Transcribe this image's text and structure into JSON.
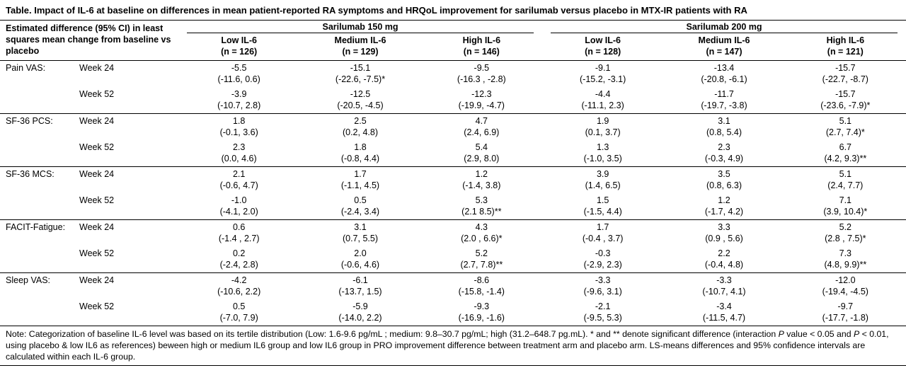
{
  "title": "Table. Impact of IL-6 at baseline on differences in mean patient-reported RA symptoms and HRQoL improvement for sarilumab versus placebo in MTX-IR patients with RA",
  "header": {
    "row_label": "Estimated difference (95% CI) in least squares mean change from baseline vs placebo",
    "groups": [
      {
        "label": "Sarilumab 150 mg",
        "columns": [
          {
            "name": "Low IL-6",
            "n": "(n = 126)"
          },
          {
            "name": "Medium IL-6",
            "n": "(n = 129)"
          },
          {
            "name": "High IL-6",
            "n": "(n = 146)"
          }
        ]
      },
      {
        "label": "Sarilumab 200 mg",
        "columns": [
          {
            "name": "Low IL-6",
            "n": "(n = 128)"
          },
          {
            "name": "Medium IL-6",
            "n": "(n = 147)"
          },
          {
            "name": "High IL-6",
            "n": "(n = 121)"
          }
        ]
      }
    ]
  },
  "measures": [
    {
      "name": "Pain VAS:",
      "rows": [
        {
          "week": "Week 24",
          "cells": [
            {
              "value": "-5.5",
              "ci": "(-11.6, 0.6)"
            },
            {
              "value": "-15.1",
              "ci": "(-22.6, -7.5)*"
            },
            {
              "value": "-9.5",
              "ci": "(-16.3 , -2.8)"
            },
            {
              "value": "-9.1",
              "ci": "(-15.2, -3.1)"
            },
            {
              "value": "-13.4",
              "ci": "(-20.8, -6.1)"
            },
            {
              "value": "-15.7",
              "ci": "(-22.7, -8.7)"
            }
          ]
        },
        {
          "week": "Week 52",
          "cells": [
            {
              "value": "-3.9",
              "ci": "(-10.7, 2.8)"
            },
            {
              "value": "-12.5",
              "ci": "(-20.5, -4.5)"
            },
            {
              "value": "-12.3",
              "ci": "(-19.9, -4.7)"
            },
            {
              "value": "-4.4",
              "ci": "(-11.1, 2.3)"
            },
            {
              "value": "-11.7",
              "ci": "(-19.7, -3.8)"
            },
            {
              "value": "-15.7",
              "ci": "(-23.6, -7.9)*"
            }
          ]
        }
      ]
    },
    {
      "name": "SF-36 PCS:",
      "rows": [
        {
          "week": "Week 24",
          "cells": [
            {
              "value": "1.8",
              "ci": "(-0.1, 3.6)"
            },
            {
              "value": "2.5",
              "ci": "(0.2, 4.8)"
            },
            {
              "value": "4.7",
              "ci": "(2.4, 6.9)"
            },
            {
              "value": "1.9",
              "ci": "(0.1, 3.7)"
            },
            {
              "value": "3.1",
              "ci": "(0.8, 5.4)"
            },
            {
              "value": "5.1",
              "ci": "(2.7, 7.4)*"
            }
          ]
        },
        {
          "week": "Week 52",
          "cells": [
            {
              "value": "2.3",
              "ci": "(0.0, 4.6)"
            },
            {
              "value": "1.8",
              "ci": "(-0.8, 4.4)"
            },
            {
              "value": "5.4",
              "ci": "(2.9, 8.0)"
            },
            {
              "value": "1.3",
              "ci": "(-1.0, 3.5)"
            },
            {
              "value": "2.3",
              "ci": "(-0.3, 4.9)"
            },
            {
              "value": "6.7",
              "ci": "(4.2, 9.3)**"
            }
          ]
        }
      ]
    },
    {
      "name": "SF-36 MCS:",
      "rows": [
        {
          "week": "Week 24",
          "cells": [
            {
              "value": "2.1",
              "ci": "(-0.6, 4.7)"
            },
            {
              "value": "1.7",
              "ci": "(-1.1, 4.5)"
            },
            {
              "value": "1.2",
              "ci": "(-1.4, 3.8)"
            },
            {
              "value": "3.9",
              "ci": "(1.4, 6.5)"
            },
            {
              "value": "3.5",
              "ci": "(0.8, 6.3)"
            },
            {
              "value": "5.1",
              "ci": "(2.4, 7.7)"
            }
          ]
        },
        {
          "week": "Week 52",
          "cells": [
            {
              "value": "-1.0",
              "ci": "(-4.1, 2.0)"
            },
            {
              "value": "0.5",
              "ci": "(-2.4, 3.4)"
            },
            {
              "value": "5.3",
              "ci": "(2.1 8.5)**"
            },
            {
              "value": "1.5",
              "ci": "(-1.5, 4.4)"
            },
            {
              "value": "1.2",
              "ci": "(-1.7, 4.2)"
            },
            {
              "value": "7.1",
              "ci": "(3.9, 10.4)*"
            }
          ]
        }
      ]
    },
    {
      "name": "FACIT-Fatigue:",
      "rows": [
        {
          "week": "Week 24",
          "cells": [
            {
              "value": "0.6",
              "ci": "(-1.4 , 2.7)"
            },
            {
              "value": "3.1",
              "ci": "(0.7, 5.5)"
            },
            {
              "value": "4.3",
              "ci": "(2.0 , 6.6)*"
            },
            {
              "value": "1.7",
              "ci": "(-0.4 , 3.7)"
            },
            {
              "value": "3.3",
              "ci": "(0.9 , 5.6)"
            },
            {
              "value": "5.2",
              "ci": "(2.8 , 7.5)*"
            }
          ]
        },
        {
          "week": "Week 52",
          "cells": [
            {
              "value": "0.2",
              "ci": "(-2.4, 2.8)"
            },
            {
              "value": "2.0",
              "ci": "(-0.6, 4.6)"
            },
            {
              "value": "5.2",
              "ci": "(2.7, 7.8)**"
            },
            {
              "value": "-0.3",
              "ci": "(-2.9, 2.3)"
            },
            {
              "value": "2.2",
              "ci": "(-0.4, 4.8)"
            },
            {
              "value": "7.3",
              "ci": "(4.8, 9.9)**"
            }
          ]
        }
      ]
    },
    {
      "name": "Sleep VAS:",
      "rows": [
        {
          "week": "Week 24",
          "cells": [
            {
              "value": "-4.2",
              "ci": "(-10.6, 2.2)"
            },
            {
              "value": "-6.1",
              "ci": "(-13.7, 1.5)"
            },
            {
              "value": "-8.6",
              "ci": "(-15.8, -1.4)"
            },
            {
              "value": "-3.3",
              "ci": "(-9.6, 3.1)"
            },
            {
              "value": "-3.3",
              "ci": "(-10.7, 4.1)"
            },
            {
              "value": "-12.0",
              "ci": "(-19.4, -4.5)"
            }
          ]
        },
        {
          "week": "Week 52",
          "cells": [
            {
              "value": "0.5",
              "ci": "(-7.0, 7.9)"
            },
            {
              "value": "-5.9",
              "ci": "(-14.0, 2.2)"
            },
            {
              "value": "-9.3",
              "ci": "(-16.9, -1.6)"
            },
            {
              "value": "-2.1",
              "ci": "(-9.5, 5.3)"
            },
            {
              "value": "-3.4",
              "ci": "(-11.5, 4.7)"
            },
            {
              "value": "-9.7",
              "ci": "(-17.7, -1.8)"
            }
          ]
        }
      ]
    }
  ],
  "note": {
    "segments": [
      {
        "text": "Note: Categorization of baseline IL-6 level was based on its tertile distribution (Low: 1.6-9.6 pg/mL ; medium: 9.8–30.7 pg/mL; high (31.2–648.7 pg.mL).  * and ** denote significant difference (interaction ",
        "italic": false
      },
      {
        "text": "P",
        "italic": true
      },
      {
        "text": " value < 0.05 and ",
        "italic": false
      },
      {
        "text": "P",
        "italic": true
      },
      {
        "text": " < 0.01, using placebo & low IL6 as references) beween high or medium IL6 group and low IL6 group in PRO improvement difference between treatment arm and placebo arm. LS-means differences and 95% confidence intervals are calculated within each IL-6 group.",
        "italic": false
      }
    ]
  }
}
